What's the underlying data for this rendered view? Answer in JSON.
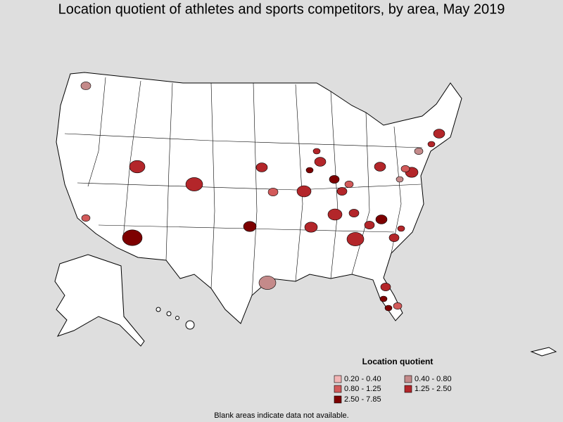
{
  "title": "Location quotient of athletes and sports competitors, by area, May 2019",
  "legend": {
    "title": "Location quotient",
    "items": [
      {
        "label": "0.20 - 0.40",
        "color": "#f2b5b5"
      },
      {
        "label": "0.40 - 0.80",
        "color": "#c48a8a"
      },
      {
        "label": "0.80 - 1.25",
        "color": "#d25a5a"
      },
      {
        "label": "1.25 - 2.50",
        "color": "#b3262a"
      },
      {
        "label": "2.50 - 7.85",
        "color": "#7d0000"
      }
    ]
  },
  "footnote": "Blank areas indicate data not available."
}
